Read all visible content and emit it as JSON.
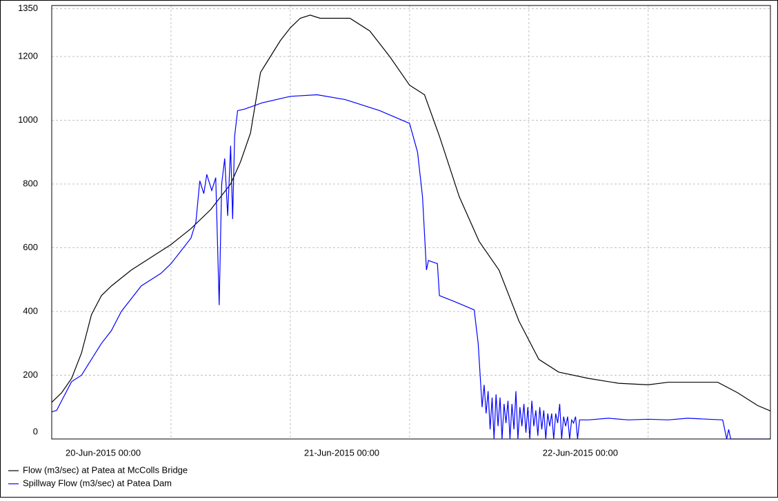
{
  "chart_data": {
    "type": "line",
    "ylim": [
      0,
      1360
    ],
    "yticks": [
      0,
      200,
      400,
      600,
      800,
      1000,
      1200,
      1350
    ],
    "xlim": [
      "2015-06-20T00:00",
      "2015-06-23T00:18"
    ],
    "xticks": [
      {
        "value": "2015-06-20T00:00",
        "label": "20-Jun-2015 00:00"
      },
      "2015-06-20T12:00",
      {
        "value": "2015-06-21T00:00",
        "label": "21-Jun-2015 00:00"
      },
      "2015-06-21T12:00",
      {
        "value": "2015-06-22T00:00",
        "label": "22-Jun-2015 00:00"
      },
      "2015-06-22T12:00"
    ],
    "grid": true,
    "legend": "bottom-left",
    "series": [
      {
        "name": "Flow (m3/sec) at Patea at McColls Bridge",
        "color": "#000000",
        "x": [
          "2015-06-20T00:00",
          "2015-06-20T01:00",
          "2015-06-20T02:00",
          "2015-06-20T03:00",
          "2015-06-20T04:00",
          "2015-06-20T05:00",
          "2015-06-20T06:00",
          "2015-06-20T08:00",
          "2015-06-20T10:00",
          "2015-06-20T12:00",
          "2015-06-20T14:00",
          "2015-06-20T16:00",
          "2015-06-20T18:00",
          "2015-06-20T19:00",
          "2015-06-20T20:00",
          "2015-06-20T21:00",
          "2015-06-20T22:00",
          "2015-06-20T23:00",
          "2015-06-21T00:00",
          "2015-06-21T01:00",
          "2015-06-21T02:00",
          "2015-06-21T03:00",
          "2015-06-21T06:00",
          "2015-06-21T08:00",
          "2015-06-21T10:00",
          "2015-06-21T12:00",
          "2015-06-21T13:30",
          "2015-06-21T15:00",
          "2015-06-21T17:00",
          "2015-06-21T19:00",
          "2015-06-21T21:00",
          "2015-06-21T23:00",
          "2015-06-22T01:00",
          "2015-06-22T03:00",
          "2015-06-22T06:00",
          "2015-06-22T09:00",
          "2015-06-22T12:00",
          "2015-06-22T14:00",
          "2015-06-22T19:00",
          "2015-06-22T21:00",
          "2015-06-22T23:00",
          "2015-06-23T00:18"
        ],
        "values": [
          115,
          145,
          190,
          270,
          390,
          450,
          480,
          530,
          570,
          610,
          660,
          720,
          800,
          870,
          960,
          1150,
          1200,
          1250,
          1290,
          1320,
          1330,
          1320,
          1320,
          1280,
          1200,
          1110,
          1080,
          950,
          760,
          620,
          530,
          370,
          250,
          210,
          190,
          175,
          170,
          178,
          178,
          145,
          105,
          88
        ]
      },
      {
        "name": "Spillway Flow (m3/sec) at Patea Dam",
        "color": "#0000ff",
        "x": [
          "2015-06-20T00:00",
          "2015-06-20T00:30",
          "2015-06-20T01:00",
          "2015-06-20T02:00",
          "2015-06-20T03:00",
          "2015-06-20T04:00",
          "2015-06-20T05:00",
          "2015-06-20T06:00",
          "2015-06-20T07:00",
          "2015-06-20T08:00",
          "2015-06-20T09:00",
          "2015-06-20T10:00",
          "2015-06-20T11:00",
          "2015-06-20T12:00",
          "2015-06-20T13:00",
          "2015-06-20T14:00",
          "2015-06-20T14:30",
          "2015-06-20T14:54",
          "2015-06-20T15:18",
          "2015-06-20T15:36",
          "2015-06-20T16:06",
          "2015-06-20T16:30",
          "2015-06-20T16:51",
          "2015-06-20T17:06",
          "2015-06-20T17:24",
          "2015-06-20T17:42",
          "2015-06-20T18:00",
          "2015-06-20T18:12",
          "2015-06-20T18:24",
          "2015-06-20T18:42",
          "2015-06-20T19:24",
          "2015-06-20T21:12",
          "2015-06-21T00:00",
          "2015-06-21T02:42",
          "2015-06-21T05:30",
          "2015-06-21T09:00",
          "2015-06-21T12:00",
          "2015-06-21T12:48",
          "2015-06-21T13:18",
          "2015-06-21T13:42",
          "2015-06-21T13:54",
          "2015-06-21T14:48",
          "2015-06-21T15:00",
          "2015-06-21T16:36",
          "2015-06-21T18:30",
          "2015-06-21T18:54",
          "2015-06-21T19:18",
          "2015-06-21T19:30",
          "2015-06-21T19:42",
          "2015-06-21T19:54",
          "2015-06-21T20:06",
          "2015-06-21T20:18",
          "2015-06-21T20:30",
          "2015-06-21T20:42",
          "2015-06-21T20:54",
          "2015-06-21T21:06",
          "2015-06-21T21:18",
          "2015-06-21T21:30",
          "2015-06-21T21:42",
          "2015-06-21T21:54",
          "2015-06-21T22:06",
          "2015-06-21T22:18",
          "2015-06-21T22:30",
          "2015-06-21T22:42",
          "2015-06-21T22:54",
          "2015-06-21T23:06",
          "2015-06-21T23:18",
          "2015-06-21T23:30",
          "2015-06-21T23:42",
          "2015-06-21T23:54",
          "2015-06-22T00:06",
          "2015-06-22T00:18",
          "2015-06-22T00:30",
          "2015-06-22T00:42",
          "2015-06-22T00:54",
          "2015-06-22T01:06",
          "2015-06-22T01:18",
          "2015-06-22T01:30",
          "2015-06-22T01:42",
          "2015-06-22T01:54",
          "2015-06-22T02:06",
          "2015-06-22T02:18",
          "2015-06-22T02:30",
          "2015-06-22T02:42",
          "2015-06-22T02:54",
          "2015-06-22T03:06",
          "2015-06-22T03:18",
          "2015-06-22T03:30",
          "2015-06-22T03:42",
          "2015-06-22T03:54",
          "2015-06-22T04:06",
          "2015-06-22T04:18",
          "2015-06-22T04:30",
          "2015-06-22T04:42",
          "2015-06-22T04:54",
          "2015-06-22T05:06",
          "2015-06-22T06:00",
          "2015-06-22T08:00",
          "2015-06-22T10:00",
          "2015-06-22T12:00",
          "2015-06-22T14:00",
          "2015-06-22T16:00",
          "2015-06-22T18:00",
          "2015-06-22T19:30",
          "2015-06-22T19:54",
          "2015-06-22T20:06",
          "2015-06-22T20:18",
          "2015-06-23T00:18"
        ],
        "values": [
          85,
          90,
          120,
          180,
          200,
          250,
          300,
          340,
          400,
          440,
          480,
          500,
          520,
          550,
          590,
          630,
          680,
          810,
          770,
          830,
          780,
          820,
          420,
          800,
          880,
          700,
          920,
          690,
          950,
          1030,
          1035,
          1055,
          1075,
          1080,
          1065,
          1030,
          990,
          900,
          760,
          530,
          560,
          550,
          450,
          430,
          405,
          300,
          100,
          170,
          80,
          150,
          30,
          130,
          0,
          140,
          40,
          130,
          0,
          110,
          50,
          120,
          0,
          110,
          30,
          150,
          0,
          100,
          40,
          110,
          20,
          100,
          0,
          120,
          40,
          90,
          10,
          100,
          30,
          90,
          0,
          80,
          40,
          80,
          0,
          80,
          50,
          110,
          0,
          70,
          40,
          70,
          0,
          60,
          50,
          70,
          0,
          60,
          60,
          65,
          60,
          62,
          60,
          65,
          62,
          60,
          0,
          30,
          0,
          0
        ]
      }
    ]
  }
}
